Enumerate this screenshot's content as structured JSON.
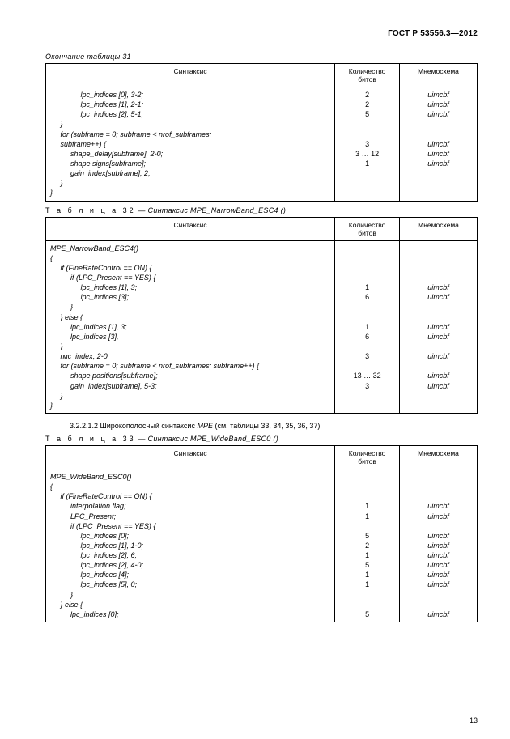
{
  "header": {
    "gost": "ГОСТ Р 53556.3—2012"
  },
  "captions": {
    "t31_cont": "Окончание таблицы 31",
    "t32_prefix": "Т а б л и ц а  32",
    "t32_rest": " — Синтаксис ",
    "t32_em": "MPE_NarrowBand_ESC4",
    "t32_tail": " ()",
    "para": "3.2.2.1.2 Широкополосный синтаксис ",
    "para_em": "MPE",
    "para_tail": " (см. таблицы 33, 34, 35, 36, 37)",
    "t33_prefix": "Т а б л и ц а  33",
    "t33_rest": " — Синтаксис ",
    "t33_em": "MPE_WideBand_ESC0",
    "t33_tail": " ()"
  },
  "cols": {
    "c1": "Синтаксис",
    "c2": "Количество\nбитов",
    "c3": "Мнемосхема"
  },
  "table31": {
    "rows": [
      {
        "s": "               lpc_indices [0], 3-2;",
        "b": "2",
        "m": "uimcbf"
      },
      {
        "s": "               lpc_indices [1], 2-1;",
        "b": "2",
        "m": "uimcbf"
      },
      {
        "s": "               lpc_indices [2], 5-1;",
        "b": "5",
        "m": "uimcbf"
      },
      {
        "s": "     }",
        "b": "",
        "m": ""
      },
      {
        "s": "     for (subframe = 0; subframe < nrof_subframes;",
        "b": "",
        "m": ""
      },
      {
        "s": "     subframe++) {",
        "b": "3",
        "m": "uimcbf"
      },
      {
        "s": "          shape_delay[subframe], 2-0;",
        "b": "3 … 12",
        "m": "uimcbf"
      },
      {
        "s": "          shape signs[subframe];",
        "b": "1",
        "m": "uimcbf"
      },
      {
        "s": "          gain_index[subframe], 2;",
        "b": "",
        "m": ""
      },
      {
        "s": "     }",
        "b": "",
        "m": ""
      },
      {
        "s": "}",
        "b": "",
        "m": ""
      }
    ]
  },
  "table32": {
    "rows": [
      {
        "s": "MPE_NarrowBand_ESC4()",
        "b": "",
        "m": ""
      },
      {
        "s": "{",
        "b": "",
        "m": ""
      },
      {
        "s": "     if (FineRateControl == ON) {",
        "b": "",
        "m": ""
      },
      {
        "s": "          if (LPC_Present == YES) {",
        "b": "",
        "m": ""
      },
      {
        "s": "               lpc_indices [1], 3;",
        "b": "1",
        "m": "uimcbf"
      },
      {
        "s": "               lpc_indices [3];",
        "b": "6",
        "m": "uimcbf"
      },
      {
        "s": "          }",
        "b": "",
        "m": ""
      },
      {
        "s": "     } else {",
        "b": "",
        "m": ""
      },
      {
        "s": "          lpc_indices [1], 3;",
        "b": "1",
        "m": "uimcbf"
      },
      {
        "s": "          lpc_indices [3],",
        "b": "6",
        "m": "uimcbf"
      },
      {
        "s": "     }",
        "b": "",
        "m": ""
      },
      {
        "s": "     rмc_index, 2-0",
        "b": "3",
        "m": "uimcbf"
      },
      {
        "s": "     for (subframe = 0; subframe < nrof_subframes; subframe++) {",
        "b": "",
        "m": ""
      },
      {
        "s": "          shape positions[subframe];",
        "b": "13 … 32",
        "m": "uimcbf"
      },
      {
        "s": "          gain_index[subframe], 5-3;",
        "b": "3",
        "m": "uimcbf"
      },
      {
        "s": "     }",
        "b": "",
        "m": ""
      },
      {
        "s": "}",
        "b": "",
        "m": ""
      }
    ]
  },
  "table33": {
    "rows": [
      {
        "s": "MPE_WideBand_ESC0()",
        "b": "",
        "m": ""
      },
      {
        "s": "{",
        "b": "",
        "m": ""
      },
      {
        "s": "     if (FineRateControl == ON) {",
        "b": "",
        "m": ""
      },
      {
        "s": "          interpolation flag;",
        "b": "1",
        "m": "uimcbf"
      },
      {
        "s": "          LPC_Present;",
        "b": "1",
        "m": "uimcbf"
      },
      {
        "s": "          if (LPC_Present == YES) {",
        "b": "",
        "m": ""
      },
      {
        "s": "               lpc_indices [0];",
        "b": "5",
        "m": "uimcbf"
      },
      {
        "s": "               lpc_indices [1], 1-0;",
        "b": "2",
        "m": "uimcbf"
      },
      {
        "s": "               lpc_indices [2], 6;",
        "b": "1",
        "m": "uimcbf"
      },
      {
        "s": "               lpc_indices [2], 4-0;",
        "b": "5",
        "m": "uimcbf"
      },
      {
        "s": "               lpc_indices [4];",
        "b": "1",
        "m": "uimcbf"
      },
      {
        "s": "               lpc_indices [5], 0;",
        "b": "1",
        "m": "uimcbf"
      },
      {
        "s": "          }",
        "b": "",
        "m": ""
      },
      {
        "s": "     } else {",
        "b": "",
        "m": ""
      },
      {
        "s": "          lpc_indices [0];",
        "b": "5",
        "m": "uimcbf"
      }
    ]
  },
  "page_num": "13"
}
